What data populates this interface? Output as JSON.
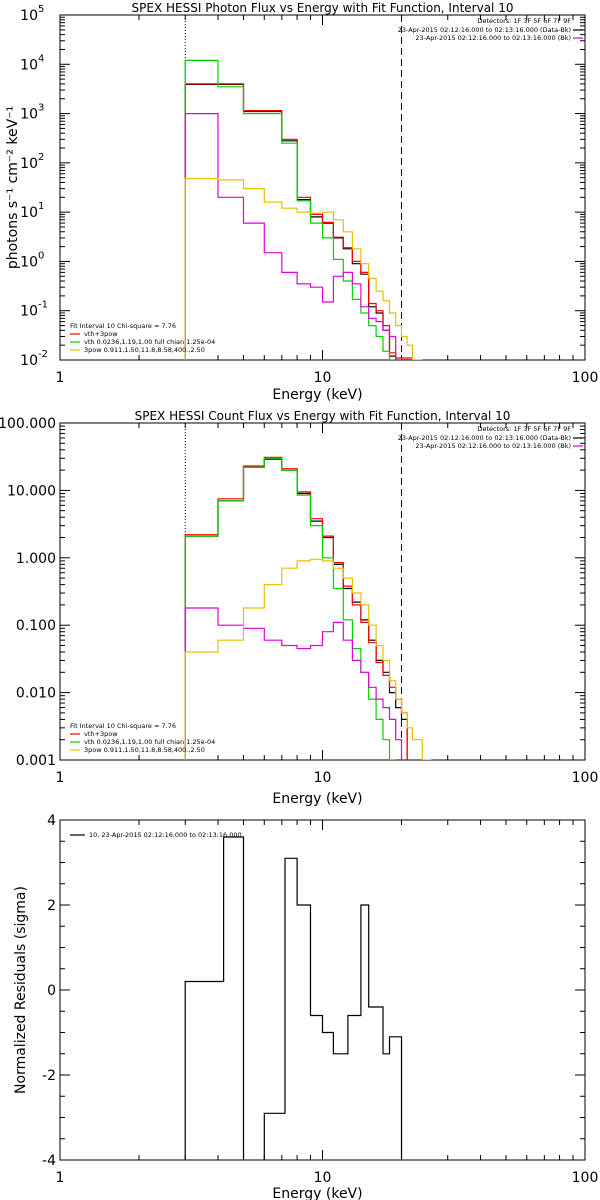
{
  "colors": {
    "black": "#000000",
    "red": "#ff0000",
    "green": "#00d400",
    "magenta": "#e000e0",
    "orange": "#e8c000"
  },
  "chart_data": [
    {
      "type": "line",
      "title": "SPEX HESSI Photon Flux vs Energy with Fit Function, Interval 10",
      "xlabel": "Energy (keV)",
      "ylabel": "photons s⁻¹ cm⁻² keV⁻¹",
      "xscale": "log",
      "yscale": "log",
      "xlim": [
        1,
        100
      ],
      "ylim": [
        0.01,
        100000
      ],
      "xticks": [
        {
          "v": 1,
          "l": "1"
        },
        {
          "v": 10,
          "l": "10"
        },
        {
          "v": 100,
          "l": "100"
        }
      ],
      "yticks": [
        {
          "v": 0.01,
          "b": "10",
          "e": "-2"
        },
        {
          "v": 0.1,
          "b": "10",
          "e": "-1"
        },
        {
          "v": 1,
          "b": "10",
          "e": "0"
        },
        {
          "v": 10,
          "b": "10",
          "e": "1"
        },
        {
          "v": 100,
          "b": "10",
          "e": "2"
        },
        {
          "v": 1000,
          "b": "10",
          "e": "3"
        },
        {
          "v": 10000,
          "b": "10",
          "e": "4"
        },
        {
          "v": 100000,
          "b": "10",
          "e": "5"
        }
      ],
      "vlines": [
        {
          "x": 3.0,
          "style": "dotted"
        },
        {
          "x": 20.0,
          "style": "dashed"
        }
      ],
      "legend_tr": {
        "detectors": "Detectors: 1F 3F 5F 6F 7F 9F",
        "rows": [
          {
            "text": "23-Apr-2015 02:12:16.000 to 02:13:16.000 (Data-Bk)",
            "color": "black"
          },
          {
            "text": "23-Apr-2015 02:12:16.000 to 02:13:16.000 (Bk)",
            "color": "magenta"
          }
        ]
      },
      "legend_bl": {
        "header": "Fit Interval 10   Chi-square = 7.76",
        "rows": [
          {
            "text": "vth+3pow",
            "color": "red"
          },
          {
            "text": "vth 0.0236,1.19,1.00  full chian 1.25e-04",
            "color": "green"
          },
          {
            "text": "3pow 0.911,1.50,11.8,8.58,400.,2.50",
            "color": "orange"
          }
        ]
      },
      "series": [
        {
          "color": "black",
          "edges": [
            3,
            4,
            5,
            6,
            7,
            8,
            9,
            10,
            11,
            12,
            13,
            14,
            15,
            16,
            17,
            18,
            19,
            20,
            21,
            22
          ],
          "values": [
            3900,
            3900,
            1100,
            1100,
            280,
            18,
            8,
            6,
            3,
            1.8,
            0.9,
            0.55,
            0.12,
            0.09,
            0.04,
            0.012,
            0.01,
            0.01,
            0.01
          ]
        },
        {
          "color": "red",
          "edges": [
            3,
            4,
            5,
            6,
            7,
            8,
            9,
            10,
            11,
            12,
            13,
            14,
            15,
            16,
            17,
            18,
            19,
            20,
            21,
            22
          ],
          "values": [
            4000,
            4000,
            1150,
            1150,
            300,
            20,
            9,
            6.2,
            3.1,
            1.9,
            1.0,
            0.6,
            0.14,
            0.1,
            0.05,
            0.014,
            0.011,
            0.011,
            0.011
          ]
        },
        {
          "color": "green",
          "edges": [
            3,
            4,
            5,
            6,
            7,
            8,
            9,
            10,
            11,
            12,
            13,
            14,
            15,
            16,
            17,
            18,
            19,
            20
          ],
          "values": [
            12000,
            3500,
            1000,
            1000,
            250,
            17,
            6,
            3,
            1.1,
            0.4,
            0.17,
            0.09,
            0.05,
            0.03,
            0.015,
            0.01,
            0.01
          ]
        },
        {
          "color": "magenta",
          "edges": [
            3,
            4,
            5,
            6,
            7,
            8,
            9,
            10,
            11,
            12,
            13,
            14,
            15,
            16,
            17,
            18,
            19,
            20
          ],
          "values": [
            1000,
            20,
            6,
            1.5,
            0.6,
            0.35,
            0.3,
            0.15,
            0.5,
            0.6,
            0.35,
            0.12,
            0.07,
            0.06,
            0.04,
            0.03,
            0.01
          ]
        },
        {
          "color": "orange",
          "edges": [
            3,
            4,
            5,
            6,
            7,
            8,
            9,
            10,
            11,
            12,
            13,
            14,
            15,
            16,
            17,
            18,
            19,
            20,
            21,
            22,
            24
          ],
          "values": [
            48,
            45,
            30,
            16,
            12,
            10,
            9.5,
            10,
            7,
            4,
            1.8,
            0.9,
            0.45,
            0.25,
            0.16,
            0.09,
            0.05,
            0.03,
            0.02,
            0.01
          ]
        }
      ]
    },
    {
      "type": "line",
      "title": "SPEX HESSI Count Flux vs Energy with Fit Function, Interval 10",
      "xlabel": "Energy (keV)",
      "ylabel": "",
      "xscale": "log",
      "yscale": "log",
      "xlim": [
        1,
        100
      ],
      "ylim": [
        0.001,
        100
      ],
      "xticks": [
        {
          "v": 1,
          "l": "1"
        },
        {
          "v": 10,
          "l": "10"
        },
        {
          "v": 100,
          "l": "100"
        }
      ],
      "yticks": [
        {
          "v": 0.001,
          "l": "0.001"
        },
        {
          "v": 0.01,
          "l": "0.010"
        },
        {
          "v": 0.1,
          "l": "0.100"
        },
        {
          "v": 1,
          "l": "1.000"
        },
        {
          "v": 10,
          "l": "10.000"
        },
        {
          "v": 100,
          "l": "100.000"
        }
      ],
      "vlines": [
        {
          "x": 3.0,
          "style": "dotted"
        },
        {
          "x": 20.0,
          "style": "dashed"
        }
      ],
      "legend_tr": {
        "detectors": "Detectors: 1F 3F 5F 6F 7F 9F",
        "rows": [
          {
            "text": "23-Apr-2015 02:12:16.000 to 02:13:16.000 (Data-Bk)",
            "color": "black"
          },
          {
            "text": "23-Apr-2015 02:12:16.000 to 02:13:16.000 (Bk)",
            "color": "magenta"
          }
        ]
      },
      "legend_bl": {
        "header": "Fit Interval 10   Chi-square = 7.76",
        "rows": [
          {
            "text": "vth+3pow",
            "color": "red"
          },
          {
            "text": "vth 0.0236,1.19,1.00  full chian 1.25e-04",
            "color": "green"
          },
          {
            "text": "3pow 0.911,1.50,11.8,8.58,400.,2.50",
            "color": "orange"
          }
        ]
      },
      "series": [
        {
          "color": "black",
          "edges": [
            3,
            4,
            5,
            6,
            7,
            8,
            9,
            10,
            11,
            12,
            13,
            14,
            15,
            16,
            17,
            18,
            19,
            20,
            21
          ],
          "values": [
            2.1,
            7,
            22,
            29,
            20,
            9,
            3.5,
            2.0,
            0.8,
            0.35,
            0.22,
            0.12,
            0.06,
            0.03,
            0.02,
            0.01,
            0.006,
            0.004
          ]
        },
        {
          "color": "red",
          "edges": [
            3,
            4,
            5,
            6,
            7,
            8,
            9,
            10,
            11,
            12,
            13,
            14,
            15,
            16,
            17,
            18,
            19,
            20,
            21
          ],
          "values": [
            2.2,
            7.5,
            23,
            31,
            21,
            9.5,
            3.8,
            2.1,
            0.85,
            0.38,
            0.2,
            0.11,
            0.055,
            0.028,
            0.018,
            0.012,
            0.008,
            0.005
          ]
        },
        {
          "color": "green",
          "edges": [
            3,
            4,
            5,
            6,
            7,
            8,
            9,
            10,
            11,
            12,
            13,
            14,
            15,
            16,
            17,
            18,
            19
          ],
          "values": [
            2.1,
            7,
            22,
            30,
            20,
            8.5,
            3,
            1.0,
            0.35,
            0.12,
            0.045,
            0.02,
            0.008,
            0.004,
            0.002,
            0.001
          ]
        },
        {
          "color": "magenta",
          "edges": [
            3,
            4,
            5,
            6,
            7,
            8,
            9,
            10,
            11,
            12,
            13,
            14,
            15,
            16,
            17,
            18,
            19,
            20
          ],
          "values": [
            0.18,
            0.1,
            0.09,
            0.06,
            0.05,
            0.045,
            0.05,
            0.08,
            0.11,
            0.06,
            0.03,
            0.02,
            0.012,
            0.008,
            0.006,
            0.004,
            0.002
          ]
        },
        {
          "color": "orange",
          "edges": [
            3,
            4,
            5,
            6,
            7,
            8,
            9,
            10,
            11,
            12,
            13,
            14,
            15,
            16,
            17,
            18,
            19,
            20,
            21,
            22,
            24,
            26
          ],
          "values": [
            0.04,
            0.06,
            0.18,
            0.4,
            0.7,
            0.9,
            0.95,
            0.9,
            0.7,
            0.5,
            0.3,
            0.2,
            0.1,
            0.05,
            0.03,
            0.015,
            0.008,
            0.005,
            0.003,
            0.002,
            0.001
          ]
        }
      ]
    },
    {
      "type": "line",
      "title": "",
      "xlabel": "Energy (keV)",
      "ylabel": "Normalized Residuals (sigma)",
      "xscale": "log",
      "yscale": "linear",
      "xlim": [
        1,
        100
      ],
      "ylim": [
        -4,
        4
      ],
      "xticks": [
        {
          "v": 1,
          "l": "1"
        },
        {
          "v": 10,
          "l": "10"
        },
        {
          "v": 100,
          "l": "100"
        }
      ],
      "yticks": [
        {
          "v": -4,
          "l": "-4"
        },
        {
          "v": -2,
          "l": "-2"
        },
        {
          "v": 0,
          "l": "0"
        },
        {
          "v": 2,
          "l": "2"
        },
        {
          "v": 4,
          "l": "4"
        }
      ],
      "vlines": [],
      "legend_tl": {
        "text": "10, 23-Apr-2015 02:12:16.000 to 02:13:16.000",
        "color": "black"
      },
      "series": [
        {
          "color": "black",
          "edges": [
            3,
            3.5,
            4.2,
            5,
            6,
            7.2,
            8,
            9,
            10,
            11,
            12.5,
            14,
            15,
            17,
            18,
            20
          ],
          "values": [
            0.2,
            0.2,
            3.6,
            -4.1,
            -2.9,
            3.1,
            2.0,
            -0.6,
            -1.0,
            -1.5,
            -0.6,
            2.0,
            -0.4,
            -1.5,
            -1.1
          ]
        }
      ]
    }
  ]
}
